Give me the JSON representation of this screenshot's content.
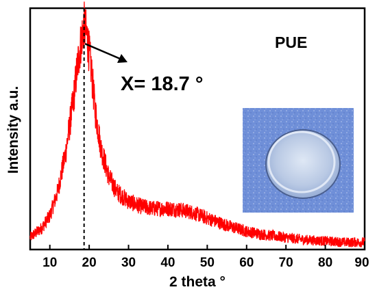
{
  "chart_data": {
    "type": "line",
    "title": "",
    "xlabel": "2 theta °",
    "ylabel": "Intensity a.u.",
    "xlim": [
      5,
      90
    ],
    "ylim": [
      0,
      1
    ],
    "x_ticks": [
      10,
      20,
      30,
      40,
      50,
      60,
      70,
      80,
      90
    ],
    "y_ticks": [],
    "grid": false,
    "legend": "none",
    "series": [
      {
        "color": "#ff0000",
        "x": [
          5,
          8,
          10,
          12,
          14,
          16,
          17,
          18,
          18.7,
          19.5,
          20.5,
          21.5,
          23,
          25,
          27,
          30,
          33,
          36,
          40,
          43,
          46,
          50,
          55,
          60,
          65,
          70,
          75,
          80,
          85,
          90
        ],
        "y": [
          0.05,
          0.09,
          0.14,
          0.24,
          0.4,
          0.62,
          0.76,
          0.87,
          0.93,
          0.88,
          0.75,
          0.58,
          0.42,
          0.3,
          0.24,
          0.2,
          0.18,
          0.17,
          0.17,
          0.165,
          0.155,
          0.13,
          0.1,
          0.075,
          0.06,
          0.05,
          0.04,
          0.035,
          0.03,
          0.03
        ]
      }
    ],
    "annotations": [
      {
        "text": "PUE",
        "kind": "label"
      },
      {
        "text": "X= 18.7 °",
        "kind": "peak-label",
        "x": 18.7
      }
    ],
    "reference_line_x": 18.7,
    "inset": {
      "kind": "photo",
      "subject": "transparent-disc-sample",
      "background": "#6f8fd8"
    }
  }
}
